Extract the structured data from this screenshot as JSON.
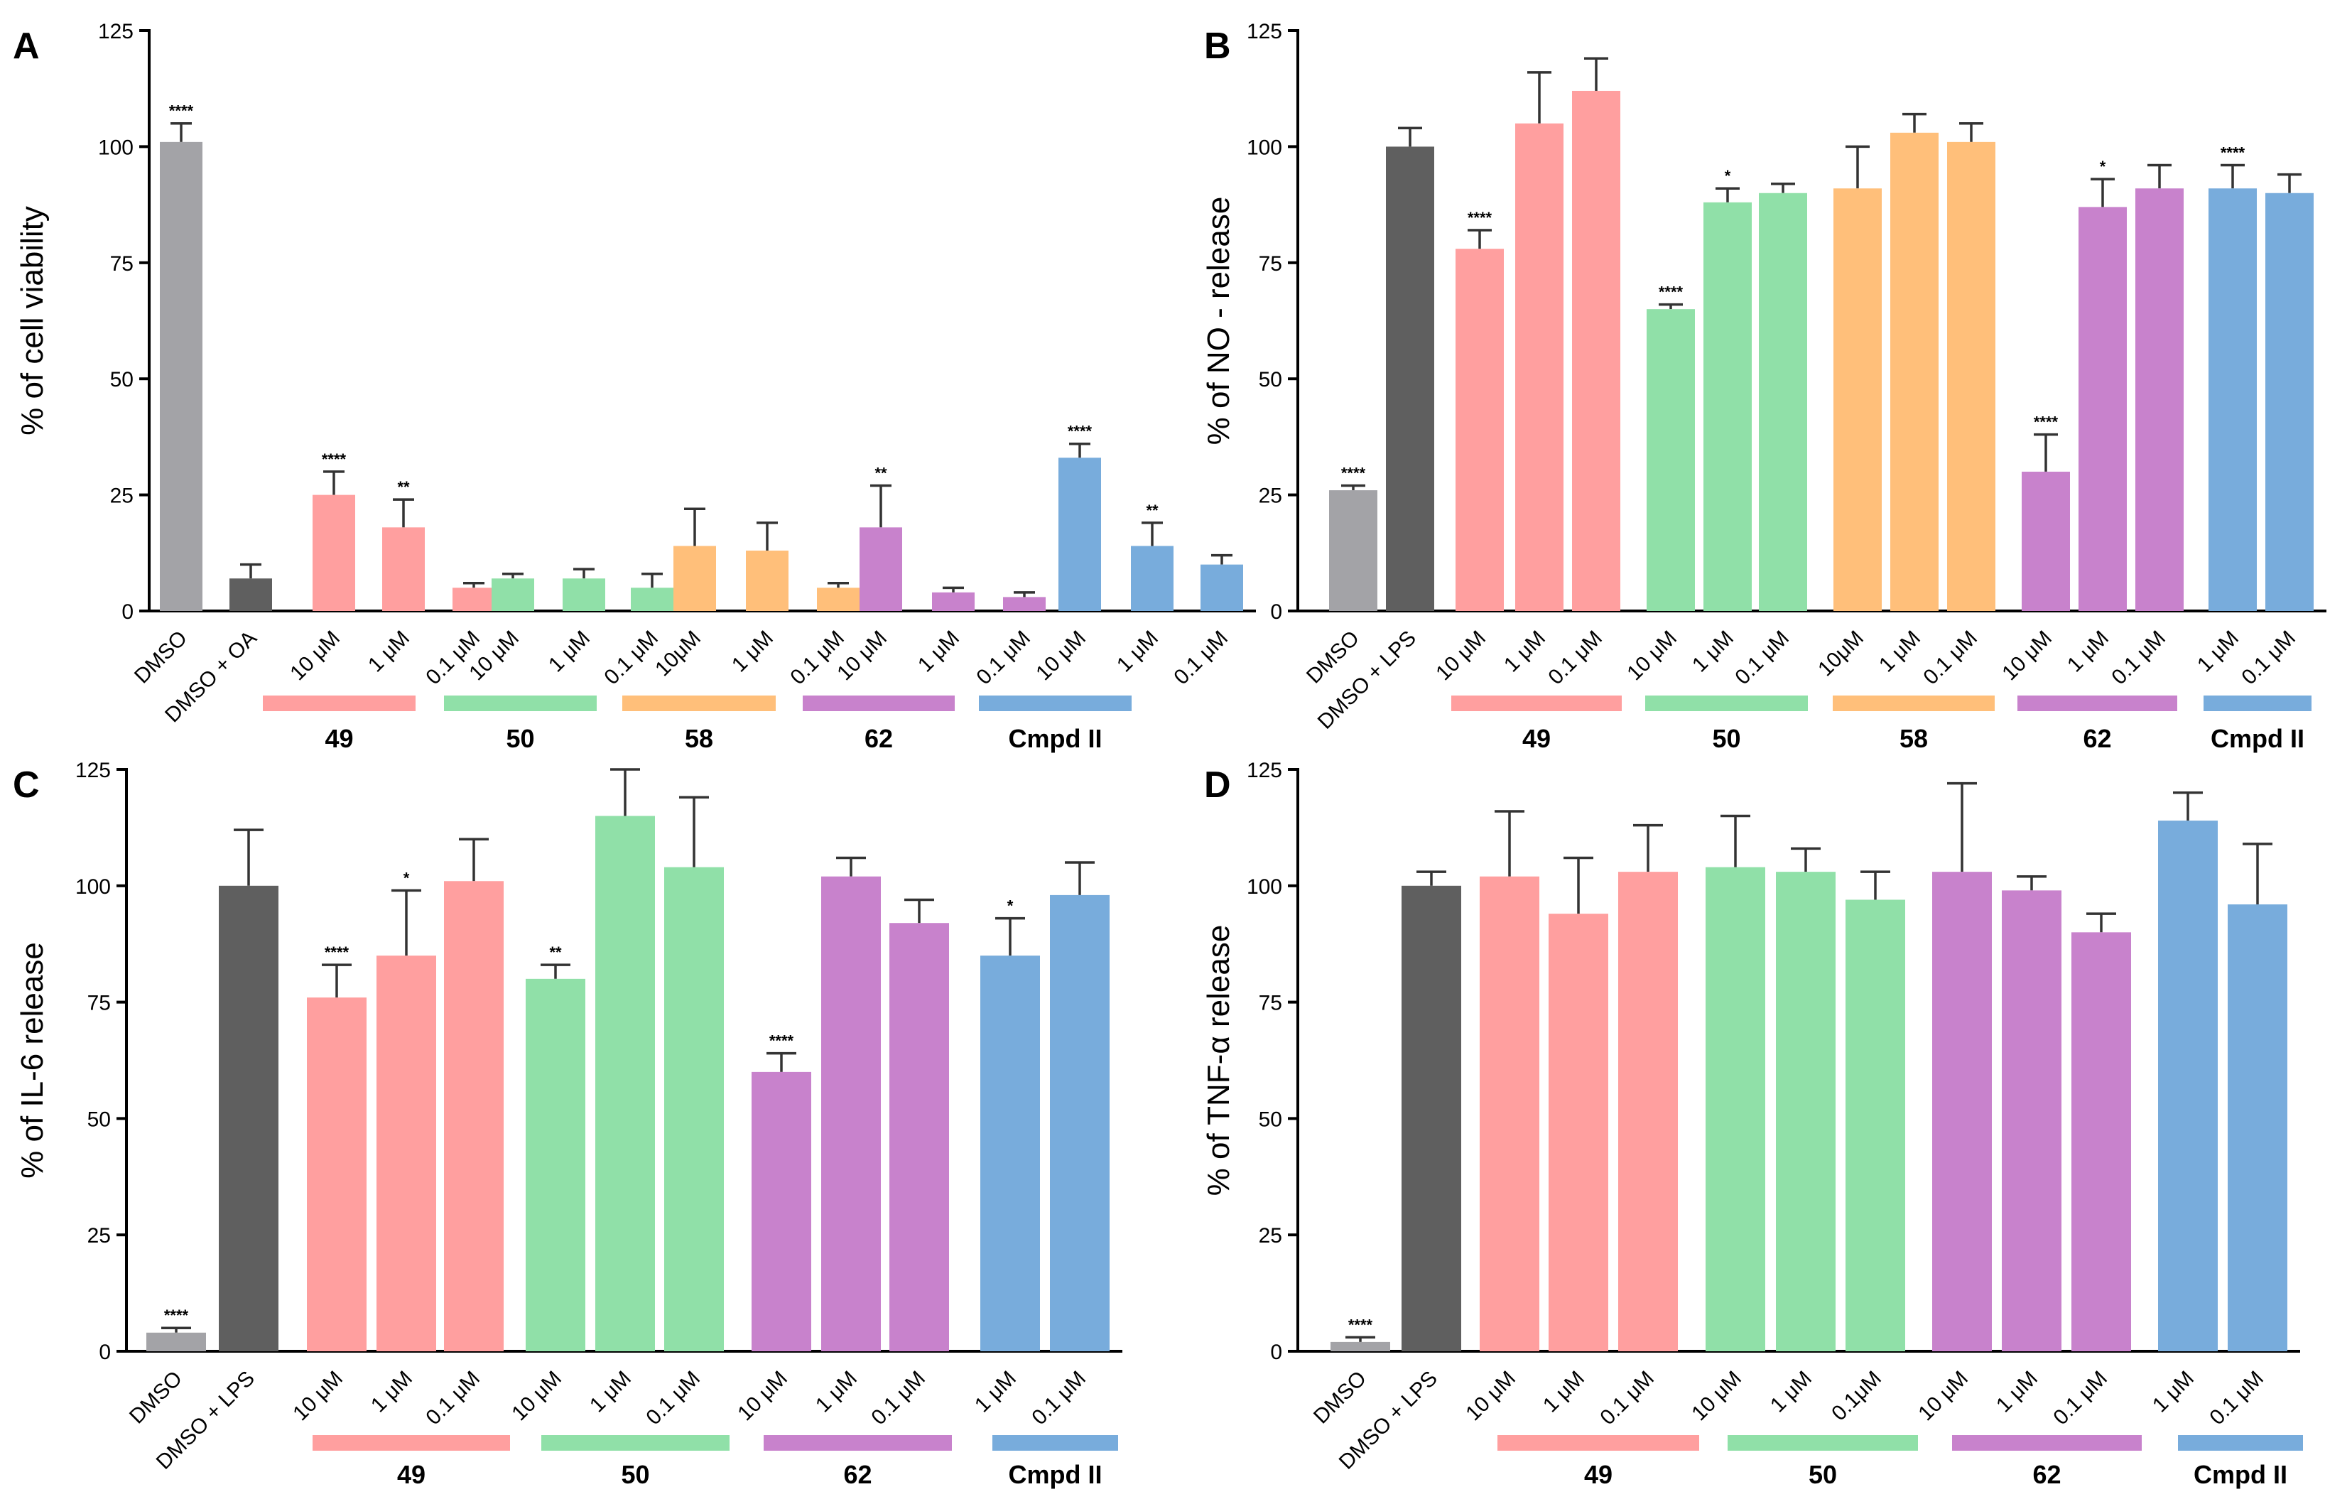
{
  "chart_data": [
    {
      "type": "bar",
      "panel": "A",
      "ylabel": "% of cell viability",
      "ylim": [
        0,
        125
      ],
      "yticks": [
        0,
        25,
        50,
        75,
        100,
        125
      ],
      "categories": [
        "DMSO",
        "DMSO + OA",
        "10 μM",
        "1 μM",
        "0.1 μM",
        "10 μM",
        "1 μM",
        "0.1 μM",
        "10μM",
        "1 μM",
        "0.1 μM",
        "10 μM",
        "1 μM",
        "0.1 μM",
        "10 μM",
        "1 μM",
        "0.1 μM"
      ],
      "values": [
        101,
        7,
        25,
        18,
        5,
        7,
        7,
        5,
        14,
        13,
        5,
        18,
        4,
        3,
        33,
        14,
        10
      ],
      "errors": [
        4,
        3,
        5,
        6,
        1,
        1,
        2,
        3,
        8,
        6,
        1,
        9,
        1,
        1,
        3,
        5,
        2
      ],
      "significance": [
        "****",
        "",
        "****",
        "**",
        "",
        "",
        "",
        "",
        "",
        "",
        "",
        "**",
        "",
        "",
        "****",
        "**",
        ""
      ],
      "groups": [
        {
          "label": "49",
          "color": "#ff9f9f",
          "bars": [
            2,
            3,
            4
          ]
        },
        {
          "label": "50",
          "color": "#90e0a8",
          "bars": [
            5,
            6,
            7
          ]
        },
        {
          "label": "58",
          "color": "#ffbf7a",
          "bars": [
            8,
            9,
            10
          ]
        },
        {
          "label": "62",
          "color": "#c882cc",
          "bars": [
            11,
            12,
            13
          ]
        },
        {
          "label": "Cmpd II",
          "color": "#78acdc",
          "bars": [
            14,
            15,
            16
          ]
        }
      ]
    },
    {
      "type": "bar",
      "panel": "B",
      "ylabel": "% of NO - release",
      "ylim": [
        0,
        125
      ],
      "yticks": [
        0,
        25,
        50,
        75,
        100,
        125
      ],
      "categories": [
        "DMSO",
        "DMSO + LPS",
        "10 μM",
        "1 μM",
        "0.1 μM",
        "10 μM",
        "1 μM",
        "0.1 μM",
        "10μM",
        "1 μM",
        "0.1 μM",
        "10 μM",
        "1 μM",
        "0.1 μM",
        "1 μM",
        "0.1 μM"
      ],
      "values": [
        26,
        100,
        78,
        105,
        112,
        65,
        88,
        90,
        91,
        103,
        101,
        30,
        87,
        91,
        91,
        90
      ],
      "errors": [
        1,
        4,
        4,
        11,
        7,
        1,
        3,
        2,
        9,
        4,
        4,
        8,
        6,
        5,
        5,
        4
      ],
      "significance": [
        "****",
        "",
        "****",
        "",
        "",
        "****",
        "*",
        "",
        "",
        "",
        "",
        "****",
        "*",
        "",
        "****",
        ""
      ],
      "groups": [
        {
          "label": "49",
          "color": "#ff9f9f",
          "bars": [
            2,
            3,
            4
          ]
        },
        {
          "label": "50",
          "color": "#90e0a8",
          "bars": [
            5,
            6,
            7
          ]
        },
        {
          "label": "58",
          "color": "#ffbf7a",
          "bars": [
            8,
            9,
            10
          ]
        },
        {
          "label": "62",
          "color": "#c882cc",
          "bars": [
            11,
            12,
            13
          ]
        },
        {
          "label": "Cmpd II",
          "color": "#78acdc",
          "bars": [
            14,
            15
          ]
        }
      ]
    },
    {
      "type": "bar",
      "panel": "C",
      "ylabel": "% of IL-6 release",
      "ylim": [
        0,
        125
      ],
      "yticks": [
        0,
        25,
        50,
        75,
        100,
        125
      ],
      "categories": [
        "DMSO",
        "DMSO + LPS",
        "10 μM",
        "1 μM",
        "0.1 μM",
        "10 μM",
        "1 μM",
        "0.1 μM",
        "10 μM",
        "1 μM",
        "0.1 μM",
        "1 μM",
        "0.1 μM"
      ],
      "values": [
        4,
        100,
        76,
        85,
        101,
        80,
        115,
        104,
        60,
        102,
        92,
        85,
        98
      ],
      "errors": [
        1,
        12,
        7,
        14,
        9,
        3,
        10,
        15,
        4,
        4,
        5,
        8,
        7
      ],
      "significance": [
        "****",
        "",
        "****",
        "*",
        "",
        "**",
        "",
        "",
        "****",
        "",
        "",
        "*",
        ""
      ],
      "groups": [
        {
          "label": "49",
          "color": "#ff9f9f",
          "bars": [
            2,
            3,
            4
          ]
        },
        {
          "label": "50",
          "color": "#90e0a8",
          "bars": [
            5,
            6,
            7
          ]
        },
        {
          "label": "62",
          "color": "#c882cc",
          "bars": [
            8,
            9,
            10
          ]
        },
        {
          "label": "Cmpd II",
          "color": "#78acdc",
          "bars": [
            11,
            12
          ]
        }
      ]
    },
    {
      "type": "bar",
      "panel": "D",
      "ylabel": "% of TNF-α release",
      "ylim": [
        0,
        125
      ],
      "yticks": [
        0,
        25,
        50,
        75,
        100,
        125
      ],
      "categories": [
        "DMSO",
        "DMSO + LPS",
        "10 μM",
        "1 μM",
        "0.1 μM",
        "10 μM",
        "1 μM",
        "0.1μM",
        "10 μM",
        "1 μM",
        "0.1 μM",
        "1 μM",
        "0.1 μM"
      ],
      "values": [
        2,
        100,
        102,
        94,
        103,
        104,
        103,
        97,
        103,
        99,
        90,
        114,
        96
      ],
      "errors": [
        1,
        3,
        14,
        12,
        10,
        11,
        5,
        6,
        19,
        3,
        4,
        6,
        13
      ],
      "significance": [
        "****",
        "",
        "",
        "",
        "",
        "",
        "",
        "",
        "",
        "",
        "",
        "",
        ""
      ],
      "groups": [
        {
          "label": "49",
          "color": "#ff9f9f",
          "bars": [
            2,
            3,
            4
          ]
        },
        {
          "label": "50",
          "color": "#90e0a8",
          "bars": [
            5,
            6,
            7
          ]
        },
        {
          "label": "62",
          "color": "#c882cc",
          "bars": [
            8,
            9,
            10
          ]
        },
        {
          "label": "Cmpd II",
          "color": "#78acdc",
          "bars": [
            11,
            12
          ]
        }
      ]
    }
  ],
  "control_colors": [
    "#a3a3a7",
    "#5f5f5f"
  ]
}
